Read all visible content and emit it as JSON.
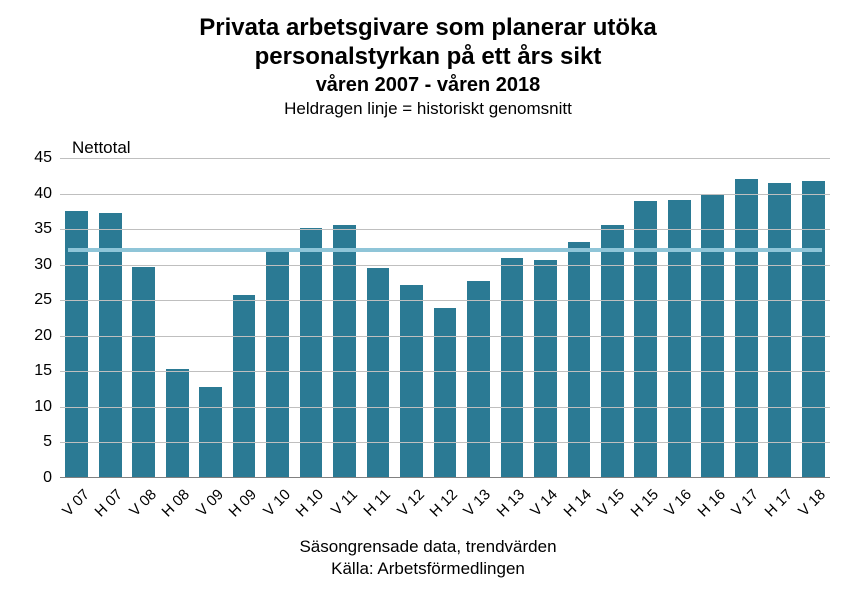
{
  "chart": {
    "type": "bar",
    "title_line1": "Privata arbetsgivare som planerar utöka",
    "title_line2": "personalstyrkan på ett års sikt",
    "subtitle": "våren 2007 - våren 2018",
    "note": "Heldragen linje = historiskt genomsnitt",
    "y_axis_title": "Nettotal",
    "footer_line1": "Säsongrensade data, trendvärden",
    "footer_line2": "Källa: Arbetsförmedlingen",
    "ylim": [
      0,
      45
    ],
    "ytick_step": 5,
    "yticks": [
      0,
      5,
      10,
      15,
      20,
      25,
      30,
      35,
      40,
      45
    ],
    "categories": [
      "V 07",
      "H 07",
      "V 08",
      "H 08",
      "V 09",
      "H 09",
      "V 10",
      "H 10",
      "V 11",
      "H 11",
      "V 12",
      "H 12",
      "V 13",
      "H 13",
      "V 14",
      "H 14",
      "V 15",
      "H 15",
      "V 16",
      "H 16",
      "V 17",
      "H 17",
      "V 18"
    ],
    "values": [
      37.5,
      37.3,
      29.7,
      15.3,
      12.8,
      25.8,
      32.0,
      35.2,
      35.6,
      29.6,
      27.1,
      23.9,
      27.7,
      30.9,
      30.7,
      33.2,
      35.6,
      38.9,
      39.1,
      40.0,
      42.0,
      41.5,
      41.8
    ],
    "average_line_value": 32.0,
    "bar_color": "#2b7a94",
    "avg_line_color": "#8fc5d8",
    "background_color": "#ffffff",
    "grid_color": "#bfbfbf",
    "axis_color": "#808080",
    "text_color": "#000000",
    "title_fontsize": 24,
    "subtitle_fontsize": 20,
    "note_fontsize": 17,
    "tick_fontsize": 16,
    "xlabel_fontsize": 15,
    "xlabel_rotation_deg": 45,
    "bar_width_ratio": 0.68
  }
}
